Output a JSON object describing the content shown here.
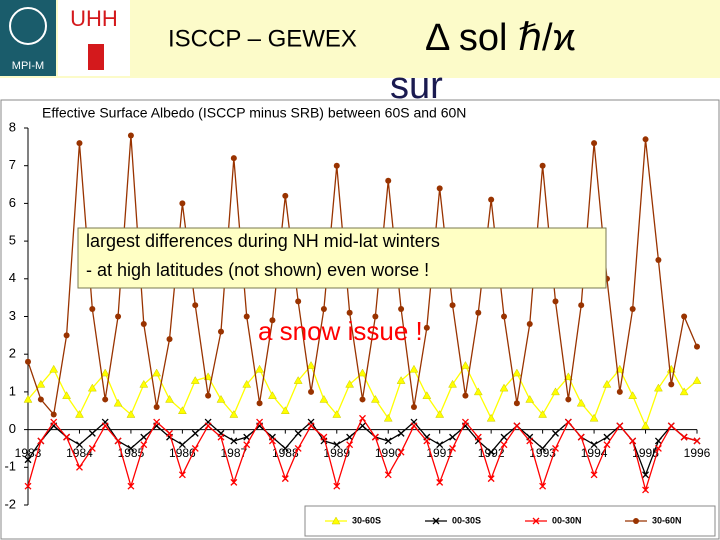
{
  "header": {
    "logos": [
      "UHH",
      "MPI-M"
    ],
    "title": "ISCCP – GEWEX",
    "symbol": "Δ sol ℏ/ϰ",
    "subtitle": "sur"
  },
  "chart_data": {
    "type": "line",
    "title": "Effective Surface Albedo (ISCCP minus SRB) between 60S and 60N",
    "x": [
      1983,
      1983.25,
      1983.5,
      1983.75,
      1984,
      1984.25,
      1984.5,
      1984.75,
      1985,
      1985.25,
      1985.5,
      1985.75,
      1986,
      1986.25,
      1986.5,
      1986.75,
      1987,
      1987.25,
      1987.5,
      1987.75,
      1988,
      1988.25,
      1988.5,
      1988.75,
      1989,
      1989.25,
      1989.5,
      1989.75,
      1990,
      1990.25,
      1990.5,
      1990.75,
      1991,
      1991.25,
      1991.5,
      1991.75,
      1992,
      1992.25,
      1992.5,
      1992.75,
      1993,
      1993.25,
      1993.5,
      1993.75,
      1994,
      1994.25,
      1994.5,
      1994.75,
      1995,
      1995.25,
      1995.5,
      1995.75,
      1996
    ],
    "xlim": [
      1983,
      1996
    ],
    "xticks": [
      1983,
      1984,
      1985,
      1986,
      1987,
      1988,
      1989,
      1990,
      1991,
      1992,
      1993,
      1994,
      1995,
      1996
    ],
    "ylim": [
      -2,
      8
    ],
    "yticks": [
      -2,
      -1,
      0,
      1,
      2,
      3,
      4,
      5,
      6,
      7,
      8
    ],
    "series": [
      {
        "name": "30-60S",
        "color": "#ffff00",
        "marker": "triangle",
        "values": [
          0.8,
          1.2,
          1.6,
          0.9,
          0.4,
          1.1,
          1.5,
          0.7,
          0.4,
          1.2,
          1.5,
          0.8,
          0.5,
          1.3,
          1.4,
          0.8,
          0.4,
          1.2,
          1.6,
          0.9,
          0.5,
          1.3,
          1.7,
          0.8,
          0.4,
          1.2,
          1.5,
          0.8,
          0.3,
          1.3,
          1.6,
          0.9,
          0.4,
          1.2,
          1.7,
          1.0,
          0.3,
          1.1,
          1.5,
          0.8,
          0.4,
          1.0,
          1.4,
          0.7,
          0.3,
          1.2,
          1.6,
          0.9,
          0.1,
          1.1,
          1.6,
          1.0,
          1.3
        ]
      },
      {
        "name": "00-30S",
        "color": "#000000",
        "marker": "x",
        "values": [
          -0.8,
          -0.3,
          0.1,
          -0.2,
          -0.4,
          -0.1,
          0.2,
          -0.3,
          -0.5,
          -0.2,
          0.1,
          -0.2,
          -0.4,
          -0.1,
          0.2,
          -0.1,
          -0.3,
          -0.2,
          0.1,
          -0.2,
          -0.5,
          -0.1,
          0.2,
          -0.3,
          -0.4,
          -0.2,
          0.1,
          -0.2,
          -0.3,
          -0.1,
          0.2,
          -0.2,
          -0.4,
          -0.2,
          0.1,
          -0.3,
          -0.6,
          -0.2,
          0.1,
          -0.2,
          -0.5,
          -0.1,
          0.2,
          -0.2,
          -0.4,
          -0.2,
          0.1,
          -0.3,
          -1.2,
          -0.3,
          0.1,
          -0.2,
          -0.3
        ]
      },
      {
        "name": "00-30N",
        "color": "#ff0000",
        "marker": "x",
        "values": [
          -1.5,
          -0.3,
          0.2,
          -0.2,
          -1.0,
          -0.5,
          0.1,
          -0.3,
          -1.5,
          -0.4,
          0.2,
          -0.1,
          -1.2,
          -0.5,
          0.1,
          -0.2,
          -1.4,
          -0.4,
          0.2,
          -0.3,
          -1.3,
          -0.5,
          0.1,
          -0.2,
          -1.5,
          -0.4,
          0.3,
          -0.2,
          -1.2,
          -0.6,
          0.1,
          -0.3,
          -1.4,
          -0.5,
          0.2,
          -0.2,
          -1.3,
          -0.4,
          0.1,
          -0.3,
          -1.5,
          -0.5,
          0.2,
          -0.2,
          -1.2,
          -0.4,
          0.1,
          -0.3,
          -1.6,
          -0.5,
          0.1,
          -0.2,
          -0.3
        ]
      },
      {
        "name": "30-60N",
        "color": "#993300",
        "marker": "circle",
        "values": [
          1.8,
          0.8,
          0.4,
          2.5,
          7.6,
          3.2,
          0.8,
          3.0,
          7.8,
          2.8,
          0.6,
          2.4,
          6.0,
          3.3,
          0.9,
          2.6,
          7.2,
          3.0,
          0.7,
          2.9,
          6.2,
          3.4,
          1.0,
          3.2,
          7.0,
          3.1,
          0.8,
          3.0,
          6.6,
          3.2,
          0.6,
          2.7,
          6.4,
          3.3,
          0.9,
          3.1,
          6.1,
          3.0,
          0.7,
          2.8,
          7.0,
          3.4,
          0.8,
          3.3,
          7.6,
          4.0,
          1.0,
          3.2,
          7.7,
          4.5,
          1.2,
          3.0,
          2.2
        ]
      }
    ],
    "annotations": [
      "largest differences during NH mid-lat winters",
      "- at high latitudes (not shown) even worse !",
      "a snow issue !"
    ],
    "grid": false
  }
}
